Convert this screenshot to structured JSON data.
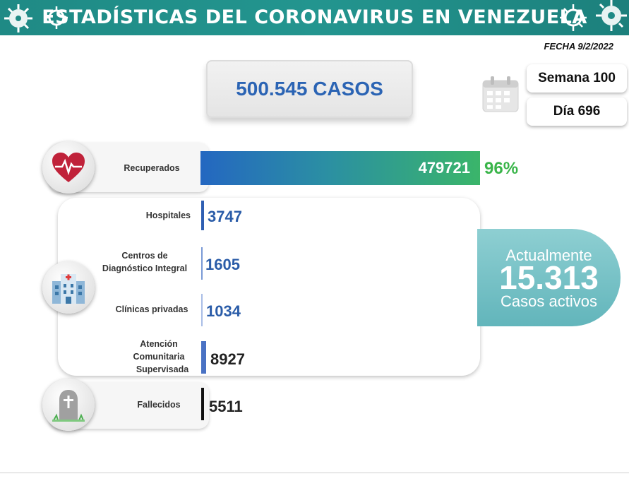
{
  "header": {
    "title": "ESTADÍSTICAS DEL CORONAVIRUS EN VENEZUELA"
  },
  "date": "FECHA 9/2/2022",
  "total": {
    "label": "500.545 CASOS"
  },
  "calendar": {
    "week": "Semana 100",
    "day": "Día 696"
  },
  "recovered": {
    "label": "Recuperados",
    "value": "479721",
    "percent": "96%"
  },
  "hospitalized": {
    "hospitals": {
      "label": "Hospitales",
      "value": "3747"
    },
    "cdi": {
      "label_line1": "Centros de",
      "label_line2": "Diagnóstico Integral",
      "value": "1605"
    },
    "private": {
      "label": "Clínicas privadas",
      "value": "1034"
    },
    "community": {
      "label_line1": "Atención",
      "label_line2": "Comunitaria",
      "label_line3": "Supervisada",
      "value": "8927"
    }
  },
  "active": {
    "top": "Actualmente",
    "number": "15.313",
    "bottom": "Casos activos"
  },
  "deceased": {
    "label": "Fallecidos",
    "value": "5511"
  },
  "colors": {
    "header": "#1f8a85",
    "accent_blue": "#2b64b4",
    "green": "#3ab54a",
    "active": "#62b5bb"
  },
  "icons": [
    "virus-icon",
    "calendar-icon",
    "heart-icon",
    "hospital-icon",
    "tombstone-icon"
  ]
}
